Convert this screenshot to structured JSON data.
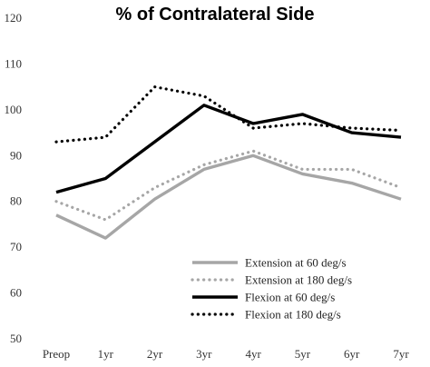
{
  "chart_data": {
    "type": "line",
    "title": "% of Contralateral Side",
    "xlabel": "",
    "ylabel": "",
    "categories": [
      "Preop",
      "1yr",
      "2yr",
      "3yr",
      "4yr",
      "5yr",
      "6yr",
      "7yr"
    ],
    "ylim": [
      50,
      120
    ],
    "yticks": [
      "50",
      "60",
      "70",
      "80",
      "90",
      "100",
      "110",
      "120"
    ],
    "grid": false,
    "legend_position": "bottom-right",
    "series": [
      {
        "name": "Extension at 60 deg/s",
        "color": "#a6a6a6",
        "style": "solid",
        "values": [
          77,
          72,
          80.5,
          87,
          90,
          86,
          84,
          80.5
        ]
      },
      {
        "name": "Extension at 180 deg/s",
        "color": "#a6a6a6",
        "style": "dotted",
        "values": [
          80,
          76,
          83,
          88,
          91,
          87,
          87,
          83
        ]
      },
      {
        "name": "Flexion at 60 deg/s",
        "color": "#000000",
        "style": "solid",
        "values": [
          82,
          85,
          93,
          101,
          97,
          99,
          95,
          94
        ]
      },
      {
        "name": "Flexion at 180 deg/s",
        "color": "#000000",
        "style": "dotted",
        "values": [
          93,
          94,
          105,
          103,
          96,
          97,
          96,
          95.5
        ]
      }
    ]
  }
}
